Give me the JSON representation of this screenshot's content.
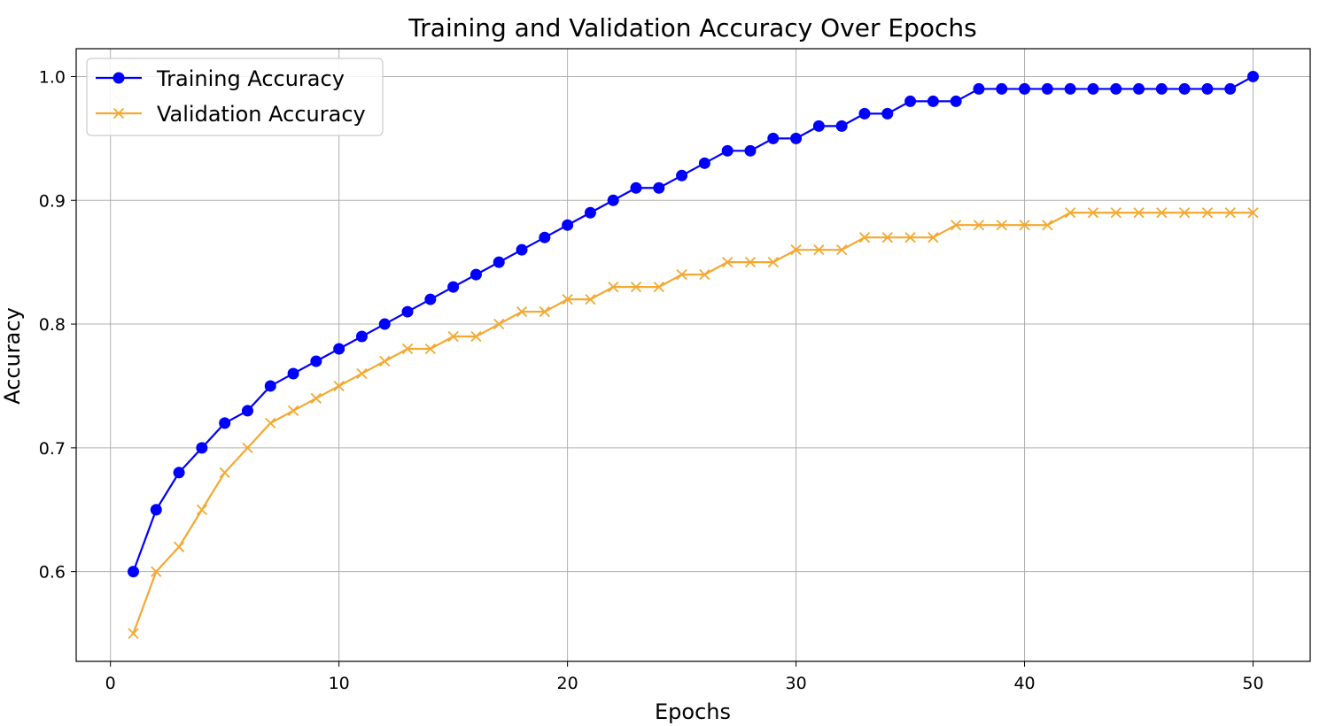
{
  "chart_data": {
    "type": "line",
    "title": "Training and Validation Accuracy Over Epochs",
    "xlabel": "Epochs",
    "ylabel": "Accuracy",
    "xlim": [
      -1.5,
      52.5
    ],
    "ylim": [
      0.5275,
      1.0225
    ],
    "xticks": [
      0,
      10,
      20,
      30,
      40,
      50
    ],
    "yticks": [
      0.6,
      0.7,
      0.8,
      0.9,
      1.0
    ],
    "xtick_labels": [
      "0",
      "10",
      "20",
      "30",
      "40",
      "50"
    ],
    "ytick_labels": [
      "0.6",
      "0.7",
      "0.8",
      "0.9",
      "1.0"
    ],
    "grid": true,
    "legend_position": "top-left",
    "x": [
      1,
      2,
      3,
      4,
      5,
      6,
      7,
      8,
      9,
      10,
      11,
      12,
      13,
      14,
      15,
      16,
      17,
      18,
      19,
      20,
      21,
      22,
      23,
      24,
      25,
      26,
      27,
      28,
      29,
      30,
      31,
      32,
      33,
      34,
      35,
      36,
      37,
      38,
      39,
      40,
      41,
      42,
      43,
      44,
      45,
      46,
      47,
      48,
      49,
      50
    ],
    "series": [
      {
        "name": "Training Accuracy",
        "color": "#0000ff",
        "marker": "circle",
        "values": [
          0.6,
          0.65,
          0.68,
          0.7,
          0.72,
          0.73,
          0.75,
          0.76,
          0.77,
          0.78,
          0.79,
          0.8,
          0.81,
          0.82,
          0.83,
          0.84,
          0.85,
          0.86,
          0.87,
          0.88,
          0.89,
          0.9,
          0.91,
          0.91,
          0.92,
          0.93,
          0.94,
          0.94,
          0.95,
          0.95,
          0.96,
          0.96,
          0.97,
          0.97,
          0.98,
          0.98,
          0.98,
          0.99,
          0.99,
          0.99,
          0.99,
          0.99,
          0.99,
          0.99,
          0.99,
          0.99,
          0.99,
          0.99,
          0.99,
          1.0
        ]
      },
      {
        "name": "Validation Accuracy",
        "color": "#f4a830",
        "marker": "x",
        "values": [
          0.55,
          0.6,
          0.62,
          0.65,
          0.68,
          0.7,
          0.72,
          0.73,
          0.74,
          0.75,
          0.76,
          0.77,
          0.78,
          0.78,
          0.79,
          0.79,
          0.8,
          0.81,
          0.81,
          0.82,
          0.82,
          0.83,
          0.83,
          0.83,
          0.84,
          0.84,
          0.85,
          0.85,
          0.85,
          0.86,
          0.86,
          0.86,
          0.87,
          0.87,
          0.87,
          0.87,
          0.88,
          0.88,
          0.88,
          0.88,
          0.88,
          0.89,
          0.89,
          0.89,
          0.89,
          0.89,
          0.89,
          0.89,
          0.89,
          0.89
        ]
      }
    ]
  }
}
